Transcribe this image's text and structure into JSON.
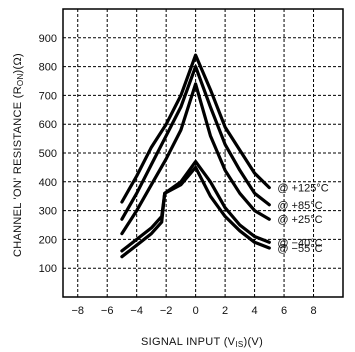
{
  "chart_data": {
    "type": "line",
    "title": "",
    "xlabel": "SIGNAL INPUT (V",
    "xlabel_sub": "IS",
    "xlabel_suffix": ")(V)",
    "ylabel": "CHANNEL 'ON' RESISTANCE (R",
    "ylabel_sub": "ON",
    "ylabel_suffix": ")(Ω)",
    "xlim": [
      -9,
      10
    ],
    "ylim": [
      0,
      1000
    ],
    "x_ticks": [
      -8,
      -6,
      -4,
      -2,
      0,
      2,
      4,
      6,
      8
    ],
    "x_tick_labels": [
      "−8",
      "−6",
      "−4",
      "−2",
      "0",
      "2",
      "4",
      "6",
      "8"
    ],
    "y_ticks": [
      100,
      200,
      300,
      400,
      500,
      600,
      700,
      800,
      900
    ],
    "y_tick_labels": [
      "100",
      "200",
      "300",
      "400",
      "500",
      "600",
      "700",
      "800",
      "900"
    ],
    "grid": true,
    "series": [
      {
        "name": "@ +125°C",
        "x": [
          -5,
          -4,
          -3,
          -2,
          -1,
          0,
          1,
          2,
          3,
          4,
          5
        ],
        "y": [
          330,
          420,
          520,
          600,
          700,
          840,
          720,
          590,
          510,
          430,
          380
        ]
      },
      {
        "name": "@ +85°C",
        "x": [
          -5,
          -4,
          -3,
          -2,
          -1,
          0,
          1,
          2,
          3,
          4,
          5
        ],
        "y": [
          270,
          360,
          460,
          560,
          660,
          800,
          660,
          530,
          440,
          360,
          320
        ]
      },
      {
        "name": "@ +25°C",
        "x": [
          -5,
          -4,
          -3,
          -2,
          -1,
          0,
          1,
          2,
          3,
          4,
          5
        ],
        "y": [
          220,
          300,
          390,
          480,
          580,
          740,
          560,
          440,
          360,
          300,
          270
        ]
      },
      {
        "name": "@ −40°C",
        "x": [
          -5,
          -4,
          -3,
          -2.3,
          -2.1,
          -1,
          0,
          1,
          2,
          3,
          4,
          5
        ],
        "y": [
          160,
          200,
          240,
          280,
          360,
          400,
          470,
          400,
          310,
          250,
          210,
          190
        ]
      },
      {
        "name": "@ −55°C",
        "x": [
          -5,
          -4,
          -3,
          -2.3,
          -2.1,
          -1,
          0,
          1,
          2,
          3,
          4,
          5
        ],
        "y": [
          140,
          180,
          220,
          260,
          360,
          390,
          450,
          350,
          280,
          230,
          190,
          170
        ]
      }
    ]
  }
}
